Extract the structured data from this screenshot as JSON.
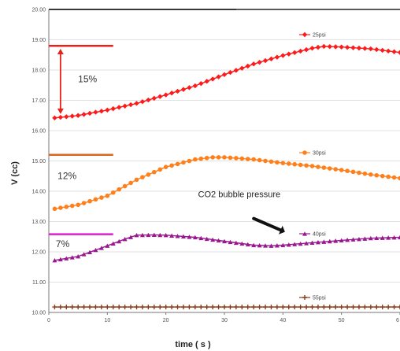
{
  "chart_data": {
    "type": "line",
    "xlabel": "time ( s )",
    "ylabel": "V (cc)",
    "xlim": [
      0,
      60
    ],
    "ylim": [
      10.0,
      20.0
    ],
    "x_ticks": [
      "0",
      "10",
      "20",
      "30",
      "40",
      "50",
      "6"
    ],
    "y_ticks": [
      "10.00",
      "11.00",
      "12.00",
      "13.00",
      "14.00",
      "15.00",
      "16.00",
      "17.00",
      "18.00",
      "19.00",
      "20.00"
    ],
    "grid": "horizontal",
    "series": [
      {
        "name": "25psi",
        "color": "#ff1a1a",
        "marker": "diamond",
        "x": [
          1,
          5,
          10,
          15,
          20,
          25,
          30,
          35,
          40,
          45,
          47,
          50,
          55,
          60
        ],
        "y": [
          16.42,
          16.5,
          16.68,
          16.9,
          17.18,
          17.48,
          17.85,
          18.2,
          18.48,
          18.72,
          18.78,
          18.76,
          18.7,
          18.58
        ]
      },
      {
        "name": "30psi",
        "color": "#ff7f1a",
        "marker": "circle",
        "x": [
          1,
          5,
          10,
          15,
          20,
          25,
          28,
          30,
          35,
          40,
          45,
          50,
          55,
          60
        ],
        "y": [
          13.42,
          13.55,
          13.85,
          14.38,
          14.8,
          15.05,
          15.12,
          15.12,
          15.05,
          14.93,
          14.83,
          14.7,
          14.55,
          14.43
        ]
      },
      {
        "name": "40psi",
        "color": "#99178f",
        "marker": "triangle",
        "x": [
          1,
          5,
          10,
          13,
          15,
          18,
          20,
          25,
          30,
          35,
          38,
          40,
          45,
          50,
          55,
          60
        ],
        "y": [
          11.72,
          11.85,
          12.2,
          12.42,
          12.55,
          12.56,
          12.55,
          12.48,
          12.35,
          12.22,
          12.2,
          12.22,
          12.3,
          12.38,
          12.45,
          12.48
        ]
      },
      {
        "name": "55psi",
        "color": "#8b3a1a",
        "marker": "plus",
        "x": [
          1,
          10,
          20,
          30,
          40,
          50,
          60
        ],
        "y": [
          10.18,
          10.18,
          10.18,
          10.18,
          10.18,
          10.18,
          10.18
        ]
      }
    ],
    "reference_lines": [
      {
        "y": 18.8,
        "x_end": 11,
        "color": "#e8221a"
      },
      {
        "y": 15.2,
        "x_end": 11,
        "color": "#d9661a"
      },
      {
        "y": 12.58,
        "x_end": 11,
        "color": "#e01ecf"
      }
    ],
    "annotations": [
      {
        "label": "15%",
        "x": 5,
        "y": 17.6
      },
      {
        "label": "12%",
        "x": 1.5,
        "y": 14.4
      },
      {
        "label": "7%",
        "x": 1.2,
        "y": 12.15
      },
      {
        "label": "CO2 bubble pressure",
        "x": 25.5,
        "y": 13.8
      }
    ]
  }
}
